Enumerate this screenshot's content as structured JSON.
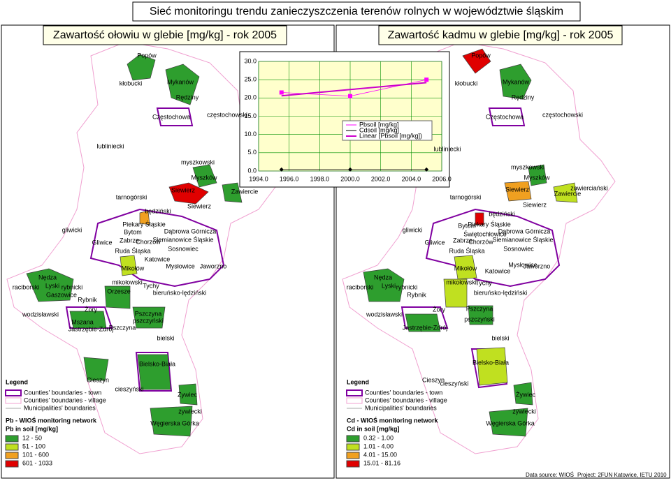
{
  "header": {
    "title": "Sieć monitoringu trendu zanieczyszczenia terenów rolnych w województwie śląskim"
  },
  "maps": [
    {
      "title": "Zawartość ołowiu w glebie [mg/kg]  - rok 2005",
      "labels": [
        "Popów",
        "kłobucki",
        "Mykanów",
        "Rędziny",
        "Częstochowa",
        "częstochowski",
        "lubliniecki",
        "myszkowski",
        "Myszków",
        "Siewierz",
        "Zawiercie",
        "tarnogórski",
        "będziński",
        "Siewierz",
        "Piekary Śląskie",
        "Bytom",
        "gliwicki",
        "Gliwice",
        "Zabrze",
        "Chorzów",
        "Dąbrowa Górnicza",
        "Siemianowice Śląskie",
        "Ruda Śląska",
        "Sosnowiec",
        "Katowice",
        "Mysłowice",
        "Jaworzno",
        "Mikołów",
        "Nędza",
        "raciborski",
        "Lyski",
        "rybnicki",
        "Gaszowice",
        "Rybnik",
        "mikołowski",
        "Orzesze",
        "Tychy",
        "bieruńsko-lędziński",
        "wodzisławski",
        "Żory",
        "Mszana",
        "Jastrzębie-Zdrój",
        "Pszczyna",
        "pszczyński",
        "Pszczyna",
        "bielski",
        "Bielsko-Biała",
        "Cieszyn",
        "cieszyński",
        "Żywiec",
        "żywiecki",
        "Węgierska Górka"
      ],
      "legend": {
        "title": "Legend",
        "items": [
          "Counties' boundaries - town",
          "Counties' boundaries - village",
          "Municipalities' boundaries"
        ],
        "network": "Pb - WIOŚ monitoring network",
        "scale_title": "Pb in soil [mg/kg]",
        "classes": [
          "12 - 50",
          "51 - 100",
          "101 - 600",
          "601 - 1033"
        ]
      }
    },
    {
      "title": "Zawartość kadmu w glebie [mg/kg] - rok 2005",
      "labels": [
        "Popów",
        "kłobucki",
        "Mykanów",
        "Rędziny",
        "Częstochowa",
        "częstochowski",
        "lubliniecki",
        "myszkowski",
        "Myszków",
        "Siewierz",
        "Zawiercie",
        "zawierciański",
        "tarnogórski",
        "będziński",
        "Siewierz",
        "Piekary Śląskie",
        "Bytom",
        "Świętochłowice",
        "gliwicki",
        "Gliwice",
        "Zabrze",
        "Chorzów",
        "Dąbrowa Górnicza",
        "Siemianowice Śląskie",
        "Ruda Śląska",
        "Sosnowiec",
        "Mysłowice",
        "Jaworzno",
        "Katowice",
        "Mikołów",
        "mikołowski",
        "Tychy",
        "bieruńsko-lędziński",
        "Nędza",
        "raciborski",
        "Lyski",
        "rybnicki",
        "Rybnik",
        "Żory",
        "wodzisławski",
        "Pszczyna",
        "pszczyński",
        "Jastrzębie-Zdrój",
        "bielski",
        "Bielsko-Biała",
        "Cieszyn",
        "cieszyński",
        "Żywiec",
        "żywiecki",
        "Węgierska Górka"
      ],
      "legend": {
        "title": "Legend",
        "items": [
          "Counties' boundaries - town",
          "Counties' boundaries - village",
          "Municipalities' boundaries"
        ],
        "network": "Cd - WIOŚ monitoring network",
        "scale_title": "Cd in soil [mg/kg]",
        "classes": [
          "0.32 - 1.00",
          "1.01 - 4.00",
          "4.01 - 15.00",
          "15.01 - 81.16"
        ]
      }
    }
  ],
  "chart": {
    "type": "line",
    "x": [
      1995.5,
      2000,
      2005
    ],
    "series": [
      {
        "name": "Pbsoil [mg/kg]",
        "color": "#ff00ff",
        "values": [
          21.5,
          20.5,
          25
        ]
      },
      {
        "name": "Cdsoil [mg/kg]",
        "color": "#000000",
        "values": [
          0.4,
          0.4,
          0.4
        ]
      },
      {
        "name": "Linear (Pbsoil [mg/kg])",
        "color": "#cc00cc",
        "values": [
          20.6,
          22.3,
          24.2
        ]
      }
    ],
    "xlim": [
      1994,
      2006
    ],
    "ylim": [
      0,
      30
    ],
    "xticks": [
      {
        "value": 1994,
        "label": "1994.0"
      },
      {
        "value": 1996,
        "label": "1996.0"
      },
      {
        "value": 1998,
        "label": "1998.0"
      },
      {
        "value": 2000,
        "label": "2000.0"
      },
      {
        "value": 2002,
        "label": "2002.0"
      },
      {
        "value": 2004,
        "label": "2004.0"
      },
      {
        "value": 2006,
        "label": "2006.0"
      }
    ],
    "yticks": [
      {
        "value": 0,
        "label": "0.0"
      },
      {
        "value": 5,
        "label": "5.0"
      },
      {
        "value": 10,
        "label": "10.0"
      },
      {
        "value": 15,
        "label": "15.0"
      },
      {
        "value": 20,
        "label": "20.0"
      },
      {
        "value": 25,
        "label": "25.0"
      },
      {
        "value": 30,
        "label": "30.0"
      }
    ],
    "grid": true
  },
  "footer": {
    "source": "Data source: WIOŚ",
    "project": "Project: 2FUN Katowice, IETU 2010"
  }
}
